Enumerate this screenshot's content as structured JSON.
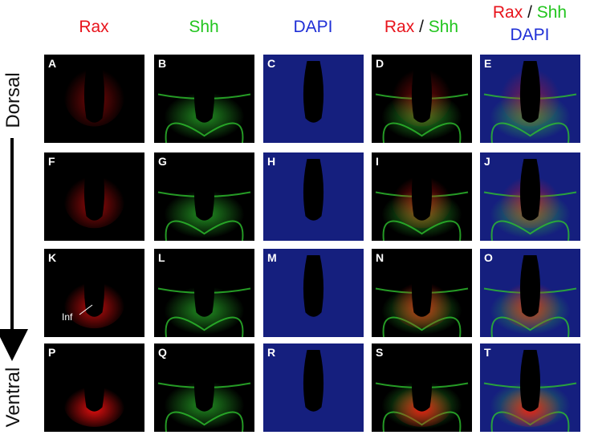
{
  "columns": [
    {
      "parts": [
        "Rax"
      ]
    },
    {
      "parts": [
        "Shh"
      ]
    },
    {
      "parts": [
        "DAPI"
      ]
    },
    {
      "parts": [
        "Rax",
        "/",
        "Shh"
      ]
    },
    {
      "parts": [
        "Rax",
        "/",
        "Shh",
        "DAPI"
      ]
    }
  ],
  "axis": {
    "top": "Dorsal",
    "bottom": "Ventral"
  },
  "panels": [
    [
      "A",
      "B",
      "C",
      "D",
      "E"
    ],
    [
      "F",
      "G",
      "H",
      "I",
      "J"
    ],
    [
      "K",
      "L",
      "M",
      "N",
      "O"
    ],
    [
      "P",
      "Q",
      "R",
      "S",
      "T"
    ]
  ],
  "annotation": "Inf"
}
